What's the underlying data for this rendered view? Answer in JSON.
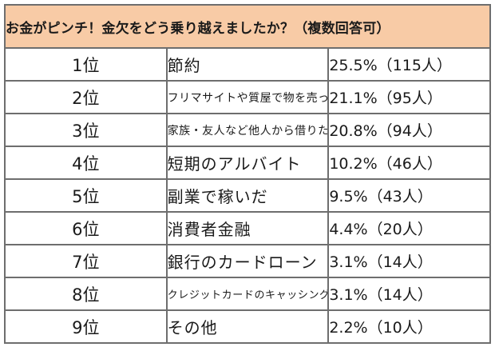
{
  "colors": {
    "header_bg": "#f8cba6",
    "border": "#6e6e6e",
    "text": "#1a1a1a"
  },
  "chart_data": {
    "type": "table",
    "title": "お金がピンチ！金欠をどう乗り越えましたか？（複数回答可）",
    "rows": [
      {
        "rank": "1位",
        "label": "節約",
        "percent": "25.5%",
        "count": "（115人）",
        "value": 25.5,
        "people": 115
      },
      {
        "rank": "2位",
        "label": "フリマサイトや質屋で物を売った",
        "percent": "21.1%",
        "count": "（95人）",
        "value": 21.1,
        "people": 95
      },
      {
        "rank": "3位",
        "label": "家族・友人など他人から借りた",
        "percent": "20.8%",
        "count": "（94人）",
        "value": 20.8,
        "people": 94
      },
      {
        "rank": "4位",
        "label": "短期のアルバイト",
        "percent": "10.2%",
        "count": "（46人）",
        "value": 10.2,
        "people": 46
      },
      {
        "rank": "5位",
        "label": "副業で稼いだ",
        "percent": "9.5%",
        "count": "（43人）",
        "value": 9.5,
        "people": 43
      },
      {
        "rank": "6位",
        "label": "消費者金融",
        "percent": "4.4%",
        "count": "（20人）",
        "value": 4.4,
        "people": 20
      },
      {
        "rank": "7位",
        "label": "銀行のカードローン",
        "percent": "3.1%",
        "count": "（14人）",
        "value": 3.1,
        "people": 14
      },
      {
        "rank": "8位",
        "label": "クレジットカードのキャッシング枠",
        "percent": "3.1%",
        "count": "（14人）",
        "value": 3.1,
        "people": 14
      },
      {
        "rank": "9位",
        "label": "その他",
        "percent": "2.2%",
        "count": "（10人）",
        "value": 2.2,
        "people": 10
      }
    ]
  }
}
